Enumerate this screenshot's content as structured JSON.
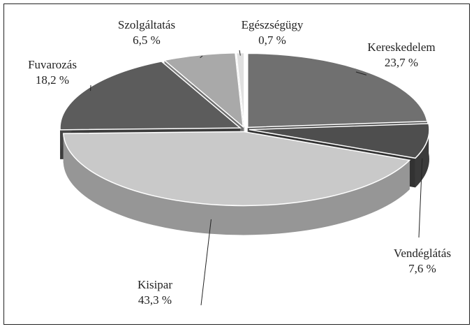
{
  "chart_data": {
    "type": "pie",
    "categories": [
      "Kereskedelem",
      "Vendéglátás",
      "Kisipar",
      "Fuvarozás",
      "Szolgáltatás",
      "Egészségügy"
    ],
    "values": [
      23.7,
      7.6,
      43.3,
      18.2,
      6.5,
      0.7
    ],
    "value_labels": [
      "23,7 %",
      "7,6 %",
      "43,3 %",
      "18,2 %",
      "6,5 %",
      "0,7 %"
    ],
    "colors": [
      "#707070",
      "#4e4e4e",
      "#c9c9c9",
      "#5c5c5c",
      "#a9a9a9",
      "#e0e0e0"
    ]
  }
}
